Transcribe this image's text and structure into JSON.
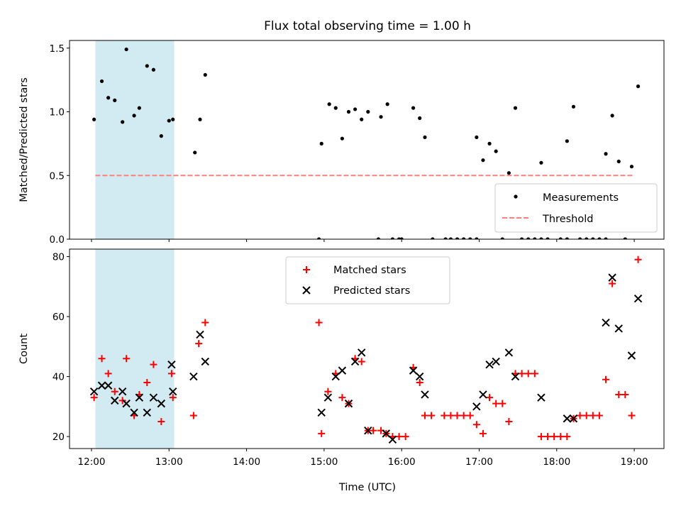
{
  "chart_data": [
    {
      "type": "scatter",
      "title": "Flux total observing time = 1.00 h",
      "xlabel": "",
      "ylabel": "Matched/Predicted stars",
      "ylim": [
        0,
        1.56
      ],
      "xlim": [
        "11:43",
        "19:23"
      ],
      "y_ticks": [
        {
          "value": 0.0,
          "label": "0.0"
        },
        {
          "value": 0.5,
          "label": "0.5"
        },
        {
          "value": 1.0,
          "label": "1.0"
        },
        {
          "value": 1.5,
          "label": "1.5"
        }
      ],
      "highlight_span": {
        "start": "12:03",
        "end": "13:04",
        "color": "#add8e6"
      },
      "threshold": {
        "name": "Threshold",
        "value": 0.5,
        "start": "12:03",
        "end": "19:00",
        "color": "#ff7f7f"
      },
      "legend_position": "lower-right",
      "series": [
        {
          "name": "Measurements",
          "marker": "dot",
          "color": "#000000",
          "points": [
            {
              "x": "12:02",
              "y": 0.94
            },
            {
              "x": "12:08",
              "y": 1.24
            },
            {
              "x": "12:13",
              "y": 1.11
            },
            {
              "x": "12:18",
              "y": 1.09
            },
            {
              "x": "12:24",
              "y": 0.92
            },
            {
              "x": "12:27",
              "y": 1.49
            },
            {
              "x": "12:33",
              "y": 0.97
            },
            {
              "x": "12:37",
              "y": 1.03
            },
            {
              "x": "12:43",
              "y": 1.36
            },
            {
              "x": "12:48",
              "y": 1.33
            },
            {
              "x": "12:54",
              "y": 0.81
            },
            {
              "x": "13:00",
              "y": 0.93
            },
            {
              "x": "13:03",
              "y": 0.94
            },
            {
              "x": "13:20",
              "y": 0.68
            },
            {
              "x": "13:24",
              "y": 0.94
            },
            {
              "x": "13:28",
              "y": 1.29
            },
            {
              "x": "14:56",
              "y": 0.0
            },
            {
              "x": "14:58",
              "y": 0.75
            },
            {
              "x": "15:04",
              "y": 1.06
            },
            {
              "x": "15:09",
              "y": 1.03
            },
            {
              "x": "15:14",
              "y": 0.79
            },
            {
              "x": "15:19",
              "y": 1.0
            },
            {
              "x": "15:24",
              "y": 1.02
            },
            {
              "x": "15:29",
              "y": 0.94
            },
            {
              "x": "15:34",
              "y": 1.0
            },
            {
              "x": "15:42",
              "y": 0.0
            },
            {
              "x": "15:44",
              "y": 0.96
            },
            {
              "x": "15:49",
              "y": 1.06
            },
            {
              "x": "15:53",
              "y": 0.0
            },
            {
              "x": "15:58",
              "y": 0.0
            },
            {
              "x": "16:00",
              "y": 0.0
            },
            {
              "x": "16:09",
              "y": 1.03
            },
            {
              "x": "16:14",
              "y": 0.95
            },
            {
              "x": "16:18",
              "y": 0.8
            },
            {
              "x": "16:24",
              "y": 0.0
            },
            {
              "x": "16:34",
              "y": 0.0
            },
            {
              "x": "16:38",
              "y": 0.0
            },
            {
              "x": "16:43",
              "y": 0.0
            },
            {
              "x": "16:48",
              "y": 0.0
            },
            {
              "x": "16:53",
              "y": 0.0
            },
            {
              "x": "16:58",
              "y": 0.0
            },
            {
              "x": "16:58",
              "y": 0.8
            },
            {
              "x": "17:03",
              "y": 0.62
            },
            {
              "x": "17:08",
              "y": 0.75
            },
            {
              "x": "17:13",
              "y": 0.69
            },
            {
              "x": "17:18",
              "y": 0.0
            },
            {
              "x": "17:23",
              "y": 0.52
            },
            {
              "x": "17:28",
              "y": 1.03
            },
            {
              "x": "17:33",
              "y": 0.0
            },
            {
              "x": "17:38",
              "y": 0.0
            },
            {
              "x": "17:43",
              "y": 0.0
            },
            {
              "x": "17:48",
              "y": 0.6
            },
            {
              "x": "17:48",
              "y": 0.0
            },
            {
              "x": "17:53",
              "y": 0.0
            },
            {
              "x": "18:03",
              "y": 0.0
            },
            {
              "x": "18:08",
              "y": 0.0
            },
            {
              "x": "18:08",
              "y": 0.77
            },
            {
              "x": "18:13",
              "y": 1.04
            },
            {
              "x": "18:18",
              "y": 0.0
            },
            {
              "x": "18:23",
              "y": 0.0
            },
            {
              "x": "18:28",
              "y": 0.0
            },
            {
              "x": "18:33",
              "y": 0.0
            },
            {
              "x": "18:38",
              "y": 0.0
            },
            {
              "x": "18:38",
              "y": 0.67
            },
            {
              "x": "18:43",
              "y": 0.97
            },
            {
              "x": "18:48",
              "y": 0.61
            },
            {
              "x": "18:53",
              "y": 0.0
            },
            {
              "x": "18:58",
              "y": 0.57
            },
            {
              "x": "19:03",
              "y": 1.2
            }
          ]
        }
      ]
    },
    {
      "type": "scatter",
      "title": "",
      "xlabel": "Time (UTC)",
      "ylabel": "Count",
      "ylim": [
        16,
        82.5
      ],
      "xlim": [
        "11:43",
        "19:23"
      ],
      "x_ticks": [
        "12:00",
        "13:00",
        "14:00",
        "15:00",
        "16:00",
        "17:00",
        "18:00",
        "19:00"
      ],
      "y_ticks": [
        {
          "value": 20,
          "label": "20"
        },
        {
          "value": 40,
          "label": "40"
        },
        {
          "value": 60,
          "label": "60"
        },
        {
          "value": 80,
          "label": "80"
        }
      ],
      "highlight_span": {
        "start": "12:03",
        "end": "13:04",
        "color": "#add8e6"
      },
      "legend_position": "upper-center",
      "series": [
        {
          "name": "Matched stars",
          "marker": "plus",
          "color": "#ff0000",
          "points": [
            {
              "x": "12:02",
              "y": 33
            },
            {
              "x": "12:08",
              "y": 46
            },
            {
              "x": "12:13",
              "y": 41
            },
            {
              "x": "12:18",
              "y": 35
            },
            {
              "x": "12:24",
              "y": 32
            },
            {
              "x": "12:27",
              "y": 46
            },
            {
              "x": "12:33",
              "y": 27
            },
            {
              "x": "12:37",
              "y": 34
            },
            {
              "x": "12:43",
              "y": 38
            },
            {
              "x": "12:48",
              "y": 44
            },
            {
              "x": "12:54",
              "y": 25
            },
            {
              "x": "13:02",
              "y": 41
            },
            {
              "x": "13:03",
              "y": 33
            },
            {
              "x": "13:19",
              "y": 27
            },
            {
              "x": "13:23",
              "y": 51
            },
            {
              "x": "13:28",
              "y": 58
            },
            {
              "x": "14:56",
              "y": 58
            },
            {
              "x": "14:58",
              "y": 21
            },
            {
              "x": "15:03",
              "y": 35
            },
            {
              "x": "15:09",
              "y": 41
            },
            {
              "x": "15:14",
              "y": 33
            },
            {
              "x": "15:19",
              "y": 31
            },
            {
              "x": "15:24",
              "y": 46
            },
            {
              "x": "15:29",
              "y": 45
            },
            {
              "x": "15:34",
              "y": 22
            },
            {
              "x": "15:38",
              "y": 22
            },
            {
              "x": "15:44",
              "y": 22
            },
            {
              "x": "15:48",
              "y": 21
            },
            {
              "x": "15:53",
              "y": 20
            },
            {
              "x": "15:58",
              "y": 20
            },
            {
              "x": "16:03",
              "y": 20
            },
            {
              "x": "16:09",
              "y": 43
            },
            {
              "x": "16:14",
              "y": 38
            },
            {
              "x": "16:18",
              "y": 27
            },
            {
              "x": "16:23",
              "y": 27
            },
            {
              "x": "16:33",
              "y": 27
            },
            {
              "x": "16:38",
              "y": 27
            },
            {
              "x": "16:43",
              "y": 27
            },
            {
              "x": "16:48",
              "y": 27
            },
            {
              "x": "16:53",
              "y": 27
            },
            {
              "x": "16:58",
              "y": 24
            },
            {
              "x": "17:03",
              "y": 21
            },
            {
              "x": "17:08",
              "y": 33
            },
            {
              "x": "17:13",
              "y": 31
            },
            {
              "x": "17:18",
              "y": 31
            },
            {
              "x": "17:23",
              "y": 25
            },
            {
              "x": "17:28",
              "y": 41
            },
            {
              "x": "17:33",
              "y": 41
            },
            {
              "x": "17:38",
              "y": 41
            },
            {
              "x": "17:43",
              "y": 41
            },
            {
              "x": "17:48",
              "y": 20
            },
            {
              "x": "17:53",
              "y": 20
            },
            {
              "x": "17:58",
              "y": 20
            },
            {
              "x": "18:03",
              "y": 20
            },
            {
              "x": "18:08",
              "y": 20
            },
            {
              "x": "18:13",
              "y": 26
            },
            {
              "x": "18:18",
              "y": 27
            },
            {
              "x": "18:23",
              "y": 27
            },
            {
              "x": "18:28",
              "y": 27
            },
            {
              "x": "18:33",
              "y": 27
            },
            {
              "x": "18:38",
              "y": 39
            },
            {
              "x": "18:43",
              "y": 71
            },
            {
              "x": "18:48",
              "y": 34
            },
            {
              "x": "18:53",
              "y": 34
            },
            {
              "x": "18:58",
              "y": 27
            },
            {
              "x": "19:03",
              "y": 79
            }
          ]
        },
        {
          "name": "Predicted stars",
          "marker": "x",
          "color": "#000000",
          "points": [
            {
              "x": "12:02",
              "y": 35
            },
            {
              "x": "12:08",
              "y": 37
            },
            {
              "x": "12:13",
              "y": 37
            },
            {
              "x": "12:18",
              "y": 32
            },
            {
              "x": "12:24",
              "y": 35
            },
            {
              "x": "12:27",
              "y": 31
            },
            {
              "x": "12:33",
              "y": 28
            },
            {
              "x": "12:37",
              "y": 33
            },
            {
              "x": "12:43",
              "y": 28
            },
            {
              "x": "12:48",
              "y": 33
            },
            {
              "x": "12:54",
              "y": 31
            },
            {
              "x": "13:02",
              "y": 44
            },
            {
              "x": "13:03",
              "y": 35
            },
            {
              "x": "13:19",
              "y": 40
            },
            {
              "x": "13:24",
              "y": 54
            },
            {
              "x": "13:28",
              "y": 45
            },
            {
              "x": "14:58",
              "y": 28
            },
            {
              "x": "15:03",
              "y": 33
            },
            {
              "x": "15:09",
              "y": 40
            },
            {
              "x": "15:14",
              "y": 42
            },
            {
              "x": "15:19",
              "y": 31
            },
            {
              "x": "15:24",
              "y": 45
            },
            {
              "x": "15:29",
              "y": 48
            },
            {
              "x": "15:34",
              "y": 22
            },
            {
              "x": "15:48",
              "y": 21
            },
            {
              "x": "15:53",
              "y": 19
            },
            {
              "x": "16:09",
              "y": 42
            },
            {
              "x": "16:14",
              "y": 40
            },
            {
              "x": "16:18",
              "y": 34
            },
            {
              "x": "16:58",
              "y": 30
            },
            {
              "x": "17:03",
              "y": 34
            },
            {
              "x": "17:08",
              "y": 44
            },
            {
              "x": "17:13",
              "y": 45
            },
            {
              "x": "17:23",
              "y": 48
            },
            {
              "x": "17:28",
              "y": 40
            },
            {
              "x": "17:48",
              "y": 33
            },
            {
              "x": "18:08",
              "y": 26
            },
            {
              "x": "18:13",
              "y": 26
            },
            {
              "x": "18:38",
              "y": 58
            },
            {
              "x": "18:43",
              "y": 73
            },
            {
              "x": "18:48",
              "y": 56
            },
            {
              "x": "18:58",
              "y": 47
            },
            {
              "x": "19:03",
              "y": 66
            }
          ]
        }
      ]
    }
  ]
}
